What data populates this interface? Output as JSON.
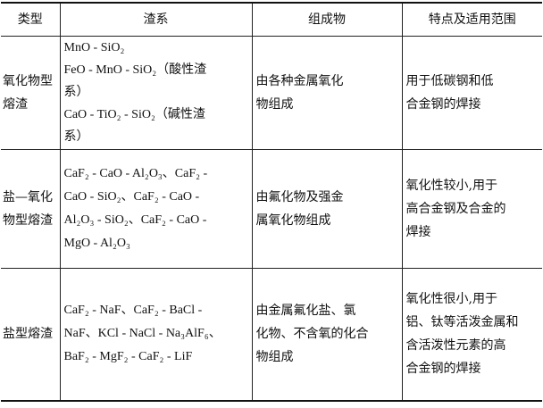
{
  "headers": [
    "类型",
    "渣系",
    "组成物",
    "特点及适用范围"
  ],
  "rows": [
    {
      "type": "氧化物型\n熔渣",
      "slag_system": "MnO - SiO₂\nFeO - MnO - SiO₂（酸性渣\n系）\nCaO - TiO₂ - SiO₂（碱性渣\n系）",
      "composition": "  由各种金属氧化\n物组成",
      "features": "  用于低碳钢和低\n合金钢的焊接"
    },
    {
      "type": "盐—氧化\n物型熔渣",
      "slag_system": "CaF₂ - CaO - Al₂O₃、CaF₂ -\nCaO - SiO₂、CaF₂ - CaO -\nAl₂O₃ - SiO₂、CaF₂ - CaO -\nMgO - Al₂O₃",
      "composition": "  由氟化物及强金\n属氧化物组成",
      "features": "  氧化性较小,用于\n高合金钢及合金的\n焊接"
    },
    {
      "type": "盐型熔渣",
      "slag_system": "CaF₂ - NaF、CaF₂ - BaCl -\nNaF、KCl - NaCl - Na₃AlF₆、\nBaF₂ - MgF₂ - CaF₂ - LiF",
      "composition": "  由金属氟化盐、氯\n化物、不含氧的化合\n物组成",
      "features": "  氧化性很小,用于\n铝、钛等活泼金属和\n含活泼性元素的高\n合金钢的焊接"
    }
  ]
}
